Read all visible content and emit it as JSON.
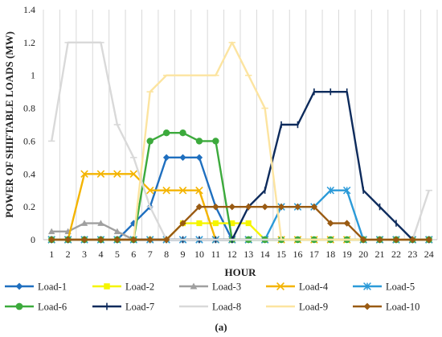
{
  "chart_data": {
    "type": "line",
    "caption": "(a)",
    "xlabel": "HOUR",
    "ylabel": "POWER OF SHIFTABLE LOADS (MW)",
    "x": [
      1,
      2,
      3,
      4,
      5,
      6,
      7,
      8,
      9,
      10,
      11,
      12,
      13,
      14,
      15,
      16,
      17,
      18,
      19,
      20,
      21,
      22,
      23,
      24
    ],
    "xticks": [
      "1",
      "2",
      "3",
      "4",
      "5",
      "6",
      "7",
      "8",
      "9",
      "10",
      "11",
      "12",
      "13",
      "14",
      "15",
      "16",
      "17",
      "18",
      "19",
      "20",
      "21",
      "22",
      "23",
      "24"
    ],
    "ylim": [
      0,
      1.4
    ],
    "yticks": [
      "0",
      "0.2",
      "0.4",
      "0.6",
      "0.8",
      "1",
      "1.2",
      "1.4"
    ],
    "grid": "vertical",
    "legend_position": "bottom",
    "series": [
      {
        "name": "Load-1",
        "color": "#1f6fbf",
        "marker": "diamond",
        "values": [
          0,
          0,
          0,
          0,
          0,
          0.1,
          0.2,
          0.5,
          0.5,
          0.5,
          0.2,
          0,
          0,
          0,
          0,
          0,
          0,
          0,
          0,
          0,
          0,
          0,
          0,
          0
        ]
      },
      {
        "name": "Load-2",
        "color": "#f5f500",
        "marker": "square",
        "values": [
          0,
          0,
          0,
          0,
          0,
          0,
          0,
          0,
          0.1,
          0.1,
          0.1,
          0.1,
          0.1,
          0,
          0,
          0,
          0,
          0,
          0,
          0,
          0,
          0,
          0,
          0
        ]
      },
      {
        "name": "Load-3",
        "color": "#a0a0a0",
        "marker": "triangle",
        "values": [
          0.05,
          0.05,
          0.1,
          0.1,
          0.05,
          0,
          0,
          0,
          0,
          0,
          0,
          0,
          0,
          0,
          0,
          0,
          0,
          0,
          0,
          0,
          0,
          0,
          0,
          0
        ]
      },
      {
        "name": "Load-4",
        "color": "#f4b400",
        "marker": "x",
        "values": [
          0,
          0,
          0.4,
          0.4,
          0.4,
          0.4,
          0.3,
          0.3,
          0.3,
          0.3,
          0,
          0,
          0,
          0,
          0,
          0,
          0,
          0,
          0,
          0,
          0,
          0,
          0,
          0
        ]
      },
      {
        "name": "Load-5",
        "color": "#2b9ad8",
        "marker": "asterisk",
        "values": [
          0,
          0,
          0,
          0,
          0,
          0,
          0,
          0,
          0,
          0,
          0,
          0,
          0,
          0,
          0.2,
          0.2,
          0.2,
          0.3,
          0.3,
          0,
          0,
          0,
          0,
          0
        ]
      },
      {
        "name": "Load-6",
        "color": "#3caa3c",
        "marker": "circle",
        "values": [
          0,
          0,
          0,
          0,
          0,
          0,
          0.6,
          0.65,
          0.65,
          0.6,
          0.6,
          0,
          0,
          0,
          0,
          0,
          0,
          0,
          0,
          0,
          0,
          0,
          0,
          0
        ]
      },
      {
        "name": "Load-7",
        "color": "#0d2b5c",
        "marker": "plus",
        "values": [
          0,
          0,
          0,
          0,
          0,
          0,
          0,
          0,
          0,
          0,
          0,
          0,
          0.2,
          0.3,
          0.7,
          0.7,
          0.9,
          0.9,
          0.9,
          0.3,
          0.2,
          0.1,
          0,
          0
        ]
      },
      {
        "name": "Load-8",
        "color": "#d9d9d9",
        "marker": "dash",
        "values": [
          0.6,
          1.2,
          1.2,
          1.2,
          0.7,
          0.5,
          0.2,
          0,
          0,
          0,
          0,
          0,
          0,
          0,
          0,
          0,
          0,
          0,
          0,
          0,
          0,
          0,
          0,
          0.3
        ]
      },
      {
        "name": "Load-9",
        "color": "#fce4a0",
        "marker": "dash",
        "values": [
          0,
          0,
          0,
          0,
          0,
          0,
          0.9,
          1,
          1,
          1,
          1,
          1.2,
          1,
          0.8,
          0,
          0,
          0,
          0,
          0,
          0,
          0,
          0,
          0,
          0
        ]
      },
      {
        "name": "Load-10",
        "color": "#9a5b13",
        "marker": "diamond",
        "values": [
          0,
          0,
          0,
          0,
          0,
          0,
          0,
          0,
          0.1,
          0.2,
          0.2,
          0.2,
          0.2,
          0.2,
          0.2,
          0.2,
          0.2,
          0.1,
          0.1,
          0,
          0,
          0,
          0,
          0
        ]
      }
    ]
  }
}
